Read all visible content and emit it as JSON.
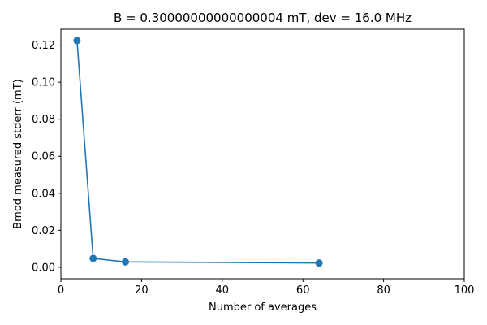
{
  "chart_data": {
    "type": "line",
    "title": "B = 0.30000000000000004 mT, dev = 16.0 MHz",
    "xlabel": "Number of averages",
    "ylabel": "Bmod measured stderr (mT)",
    "xlim": [
      0,
      100
    ],
    "ylim": [
      -0.0062,
      0.1286
    ],
    "xticks": [
      0,
      20,
      40,
      60,
      80,
      100
    ],
    "xtick_labels": [
      "0",
      "20",
      "40",
      "60",
      "80",
      "100"
    ],
    "yticks": [
      0.0,
      0.02,
      0.04,
      0.06,
      0.08,
      0.1,
      0.12
    ],
    "ytick_labels": [
      "0.00",
      "0.02",
      "0.04",
      "0.06",
      "0.08",
      "0.10",
      "0.12"
    ],
    "grid": false,
    "series": [
      {
        "x": [
          4,
          8,
          16,
          64
        ],
        "y": [
          0.1225,
          0.0048,
          0.0029,
          0.0023
        ],
        "color": "#1f77b4",
        "marker": "circle"
      }
    ]
  }
}
